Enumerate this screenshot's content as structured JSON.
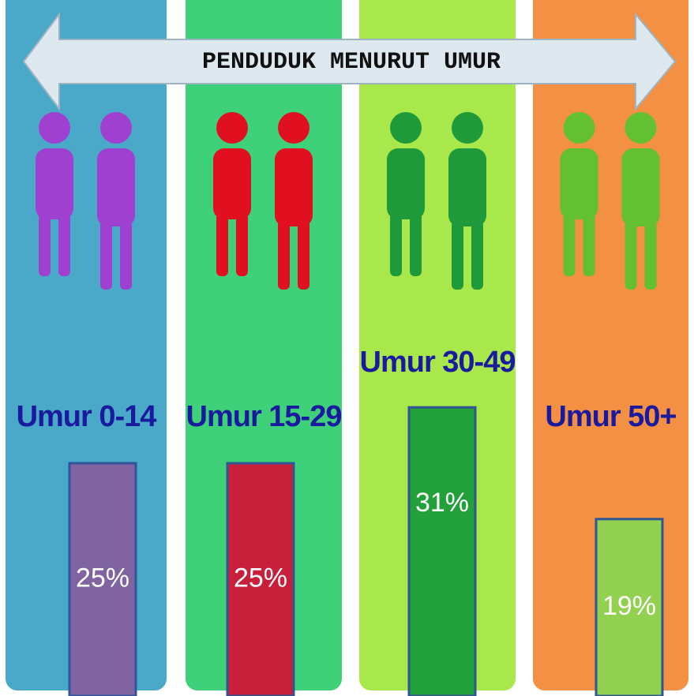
{
  "chart_data": {
    "type": "bar",
    "title": "PENDUDUK MENURUT UMUR",
    "categories": [
      "Umur 0-14",
      "Umur 15-29",
      "Umur 30-49",
      "Umur 50+"
    ],
    "values": [
      25,
      25,
      31,
      19
    ],
    "value_labels": [
      "25%",
      "25%",
      "31%",
      "19%"
    ],
    "colors": [
      "#8064a2",
      "#c8203a",
      "#22a03a",
      "#92d050"
    ],
    "panel_colors": [
      "#4aa8c8",
      "#3ed17a",
      "#a8e84a",
      "#f39044"
    ],
    "figure_colors": [
      "#a040d0",
      "#e01020",
      "#1f9a3a",
      "#62c032"
    ]
  }
}
